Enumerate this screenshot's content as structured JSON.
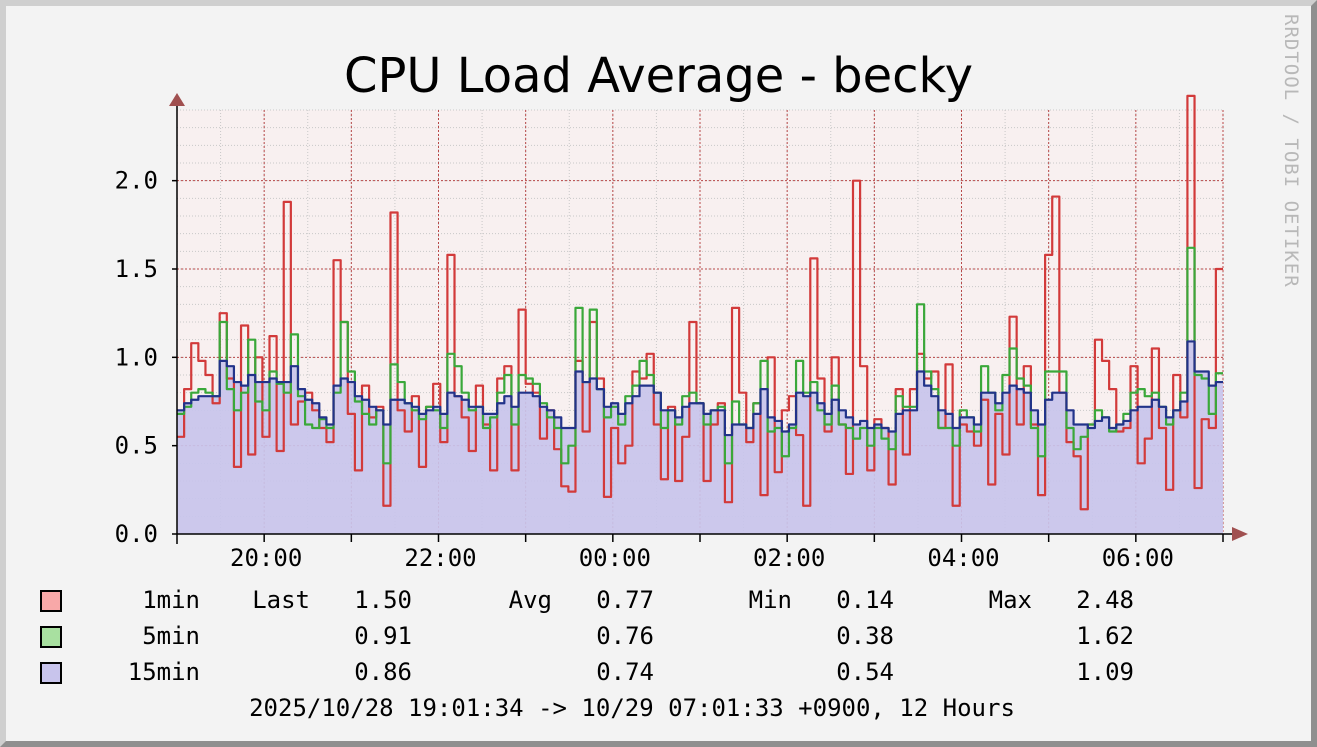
{
  "title": "CPU Load Average - becky",
  "watermark": "RRDTOOL / TOBI OETIKER",
  "chart_data": {
    "type": "line",
    "title": "CPU Load Average - becky",
    "xlabel": "",
    "ylabel": "",
    "ylim": [
      0,
      2.4
    ],
    "y_ticks": [
      0.0,
      0.5,
      1.0,
      1.5,
      2.0
    ],
    "y_tick_labels": [
      "0.0",
      "0.5",
      "1.0",
      "1.5",
      "2.0"
    ],
    "x_ticks": [
      1,
      3,
      5,
      7,
      9,
      11
    ],
    "x_tick_labels": [
      "20:00",
      "22:00",
      "00:00",
      "02:00",
      "04:00",
      "06:00"
    ],
    "x_range_hours": [
      0,
      12
    ],
    "grid": true,
    "series": [
      {
        "name": "1min",
        "color": "#d23a3a",
        "values": [
          0.55,
          0.82,
          1.08,
          0.98,
          0.9,
          0.74,
          1.25,
          0.88,
          0.38,
          1.18,
          0.45,
          1.0,
          0.55,
          1.12,
          0.47,
          1.88,
          0.62,
          0.75,
          0.8,
          0.7,
          0.6,
          0.52,
          1.55,
          1.2,
          0.68,
          0.36,
          0.84,
          0.66,
          0.72,
          0.16,
          1.82,
          0.7,
          0.58,
          0.78,
          0.38,
          0.72,
          0.85,
          0.52,
          1.58,
          0.78,
          0.66,
          0.47,
          0.84,
          0.62,
          0.36,
          0.88,
          0.95,
          0.36,
          1.27,
          0.85,
          0.8,
          0.54,
          0.7,
          0.48,
          0.27,
          0.24,
          0.98,
          0.58,
          1.2,
          0.88,
          0.21,
          0.6,
          0.4,
          0.5,
          0.92,
          0.88,
          1.02,
          0.62,
          0.31,
          0.72,
          0.3,
          0.55,
          1.2,
          0.74,
          0.3,
          0.62,
          0.74,
          0.18,
          1.28,
          0.8,
          0.52,
          0.74,
          0.22,
          1.0,
          0.35,
          0.7,
          0.78,
          0.56,
          0.16,
          1.56,
          0.88,
          0.58,
          1.0,
          0.62,
          0.34,
          2.0,
          0.95,
          0.36,
          0.65,
          0.6,
          0.28,
          0.82,
          0.45,
          0.82,
          1.02,
          0.88,
          0.92,
          0.6,
          0.96,
          0.16,
          0.62,
          0.58,
          0.5,
          0.76,
          0.28,
          0.68,
          0.45,
          1.23,
          0.62,
          0.95,
          0.62,
          0.22,
          1.58,
          1.91,
          0.8,
          0.52,
          0.44,
          0.14,
          0.62,
          1.1,
          0.98,
          0.82,
          0.58,
          0.6,
          0.95,
          0.4,
          0.54,
          1.05,
          0.6,
          0.25,
          0.9,
          0.66,
          2.48,
          0.26,
          0.65,
          0.6,
          1.5
        ]
      },
      {
        "name": "5min",
        "color": "#3aa83a",
        "values": [
          0.68,
          0.72,
          0.8,
          0.82,
          0.8,
          0.78,
          1.2,
          0.82,
          0.7,
          0.8,
          1.1,
          0.75,
          0.7,
          0.92,
          0.85,
          0.8,
          1.13,
          0.78,
          0.62,
          0.6,
          0.65,
          0.6,
          0.8,
          1.2,
          0.92,
          0.75,
          0.68,
          0.62,
          0.7,
          0.4,
          0.96,
          0.86,
          0.74,
          0.7,
          0.65,
          0.72,
          0.7,
          0.6,
          1.02,
          0.95,
          0.8,
          0.7,
          0.72,
          0.6,
          0.66,
          0.8,
          0.9,
          0.62,
          0.9,
          0.88,
          0.85,
          0.74,
          0.66,
          0.6,
          0.4,
          0.5,
          1.28,
          0.86,
          1.27,
          0.82,
          0.66,
          0.72,
          0.62,
          0.78,
          0.84,
          0.98,
          0.9,
          0.8,
          0.6,
          0.7,
          0.62,
          0.78,
          0.8,
          0.74,
          0.62,
          0.7,
          0.72,
          0.4,
          0.75,
          0.62,
          0.6,
          0.74,
          0.98,
          0.58,
          0.6,
          0.44,
          0.6,
          0.98,
          0.8,
          0.86,
          0.7,
          0.62,
          0.84,
          0.62,
          0.6,
          0.54,
          0.6,
          0.5,
          0.6,
          0.54,
          0.48,
          0.78,
          0.72,
          0.72,
          1.3,
          0.92,
          0.82,
          0.6,
          0.6,
          0.5,
          0.7,
          0.66,
          0.58,
          0.95,
          0.8,
          0.7,
          0.9,
          1.05,
          0.88,
          0.84,
          0.6,
          0.44,
          0.92,
          0.92,
          0.92,
          0.6,
          0.48,
          0.55,
          0.62,
          0.7,
          0.66,
          0.58,
          0.62,
          0.68,
          0.8,
          0.82,
          0.78,
          0.8,
          0.72,
          0.62,
          0.7,
          0.8,
          1.62,
          0.9,
          0.88,
          0.68,
          0.91
        ]
      },
      {
        "name": "15min",
        "color": "#22338a",
        "values": [
          0.7,
          0.74,
          0.76,
          0.78,
          0.78,
          0.78,
          0.98,
          0.95,
          0.86,
          0.84,
          0.9,
          0.86,
          0.86,
          0.88,
          0.86,
          0.86,
          0.95,
          0.82,
          0.76,
          0.74,
          0.66,
          0.62,
          0.84,
          0.88,
          0.86,
          0.78,
          0.76,
          0.72,
          0.7,
          0.62,
          0.76,
          0.76,
          0.74,
          0.72,
          0.68,
          0.7,
          0.72,
          0.68,
          0.8,
          0.78,
          0.76,
          0.72,
          0.72,
          0.68,
          0.68,
          0.74,
          0.78,
          0.72,
          0.8,
          0.8,
          0.78,
          0.72,
          0.7,
          0.66,
          0.6,
          0.6,
          0.92,
          0.86,
          0.88,
          0.82,
          0.72,
          0.74,
          0.68,
          0.74,
          0.78,
          0.84,
          0.84,
          0.8,
          0.7,
          0.7,
          0.66,
          0.72,
          0.74,
          0.74,
          0.68,
          0.7,
          0.7,
          0.56,
          0.62,
          0.62,
          0.6,
          0.68,
          0.82,
          0.66,
          0.64,
          0.58,
          0.62,
          0.8,
          0.78,
          0.8,
          0.74,
          0.68,
          0.76,
          0.7,
          0.66,
          0.62,
          0.64,
          0.6,
          0.62,
          0.6,
          0.58,
          0.68,
          0.7,
          0.7,
          0.92,
          0.84,
          0.78,
          0.7,
          0.68,
          0.6,
          0.66,
          0.66,
          0.62,
          0.8,
          0.8,
          0.74,
          0.8,
          0.84,
          0.82,
          0.8,
          0.7,
          0.62,
          0.76,
          0.8,
          0.8,
          0.7,
          0.62,
          0.62,
          0.6,
          0.64,
          0.66,
          0.6,
          0.62,
          0.64,
          0.7,
          0.72,
          0.72,
          0.76,
          0.72,
          0.66,
          0.7,
          0.75,
          1.09,
          0.92,
          0.92,
          0.84,
          0.86
        ]
      }
    ]
  },
  "legend": {
    "headers": {
      "last": "Last",
      "avg": "Avg",
      "min": "Min",
      "max": "Max"
    },
    "rows": [
      {
        "name": "1min",
        "color": "#f8a8a8",
        "last": "1.50",
        "avg": "0.77",
        "min": "0.14",
        "max": "2.48"
      },
      {
        "name": "5min",
        "color": "#a8e0a0",
        "last": "0.91",
        "avg": "0.76",
        "min": "0.38",
        "max": "1.62"
      },
      {
        "name": "15min",
        "color": "#c8c4ec",
        "last": "0.86",
        "avg": "0.74",
        "min": "0.54",
        "max": "1.09"
      }
    ]
  },
  "footer": "2025/10/28 19:01:34 -> 10/29 07:01:33 +0900, 12 Hours"
}
